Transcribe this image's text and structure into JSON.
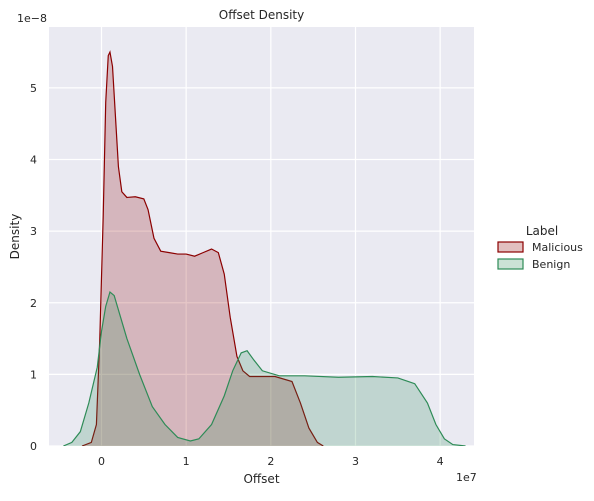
{
  "chart_data": {
    "type": "area",
    "title": "Offset Density",
    "xlabel": "Offset",
    "ylabel": "Density",
    "x_offset_label": "1e7",
    "y_offset_label": "1e−8",
    "x_ticks": [
      "0",
      "1",
      "2",
      "3",
      "4"
    ],
    "y_ticks": [
      "0",
      "1",
      "2",
      "3",
      "4",
      "5"
    ],
    "xlim": [
      -0.62,
      4.4
    ],
    "ylim": [
      0,
      5.85
    ],
    "grid": true,
    "legend": {
      "title": "Label",
      "placement": "right",
      "entries": [
        {
          "name": "Malicious",
          "color": "#8b0000"
        },
        {
          "name": "Benign",
          "color": "#2e8b57"
        }
      ]
    },
    "series": [
      {
        "name": "Malicious",
        "color": "#8b0000",
        "fill": "#d9b0b8",
        "points": [
          [
            -0.23,
            0
          ],
          [
            -0.12,
            0.05
          ],
          [
            -0.06,
            0.3
          ],
          [
            -0.02,
            1.5
          ],
          [
            0.02,
            3.2
          ],
          [
            0.05,
            4.8
          ],
          [
            0.08,
            5.45
          ],
          [
            0.1,
            5.5
          ],
          [
            0.13,
            5.3
          ],
          [
            0.17,
            4.5
          ],
          [
            0.2,
            3.9
          ],
          [
            0.24,
            3.55
          ],
          [
            0.3,
            3.47
          ],
          [
            0.4,
            3.48
          ],
          [
            0.5,
            3.45
          ],
          [
            0.55,
            3.3
          ],
          [
            0.62,
            2.9
          ],
          [
            0.7,
            2.72
          ],
          [
            0.8,
            2.7
          ],
          [
            0.9,
            2.68
          ],
          [
            1.0,
            2.68
          ],
          [
            1.1,
            2.65
          ],
          [
            1.2,
            2.7
          ],
          [
            1.3,
            2.75
          ],
          [
            1.38,
            2.7
          ],
          [
            1.45,
            2.4
          ],
          [
            1.52,
            1.8
          ],
          [
            1.6,
            1.25
          ],
          [
            1.67,
            1.05
          ],
          [
            1.75,
            0.97
          ],
          [
            1.9,
            0.97
          ],
          [
            2.05,
            0.97
          ],
          [
            2.25,
            0.9
          ],
          [
            2.35,
            0.6
          ],
          [
            2.45,
            0.25
          ],
          [
            2.55,
            0.05
          ],
          [
            2.62,
            0
          ]
        ]
      },
      {
        "name": "Benign",
        "color": "#2e8b57",
        "fill": "#b5d3c8",
        "points": [
          [
            -0.45,
            0
          ],
          [
            -0.35,
            0.05
          ],
          [
            -0.25,
            0.2
          ],
          [
            -0.15,
            0.6
          ],
          [
            -0.05,
            1.1
          ],
          [
            0.0,
            1.6
          ],
          [
            0.05,
            1.95
          ],
          [
            0.1,
            2.15
          ],
          [
            0.15,
            2.1
          ],
          [
            0.2,
            1.9
          ],
          [
            0.3,
            1.5
          ],
          [
            0.45,
            1.0
          ],
          [
            0.6,
            0.55
          ],
          [
            0.75,
            0.3
          ],
          [
            0.9,
            0.12
          ],
          [
            1.05,
            0.07
          ],
          [
            1.15,
            0.1
          ],
          [
            1.3,
            0.3
          ],
          [
            1.45,
            0.7
          ],
          [
            1.55,
            1.05
          ],
          [
            1.65,
            1.3
          ],
          [
            1.72,
            1.33
          ],
          [
            1.8,
            1.2
          ],
          [
            1.9,
            1.05
          ],
          [
            2.1,
            0.98
          ],
          [
            2.4,
            0.98
          ],
          [
            2.8,
            0.96
          ],
          [
            3.2,
            0.97
          ],
          [
            3.5,
            0.95
          ],
          [
            3.7,
            0.87
          ],
          [
            3.85,
            0.6
          ],
          [
            3.95,
            0.3
          ],
          [
            4.05,
            0.1
          ],
          [
            4.15,
            0.02
          ],
          [
            4.3,
            0
          ]
        ]
      }
    ],
    "colors": {
      "background": "#eaeaf2",
      "grid": "#ffffff",
      "overlap_outline": "#5a5a3c"
    }
  }
}
